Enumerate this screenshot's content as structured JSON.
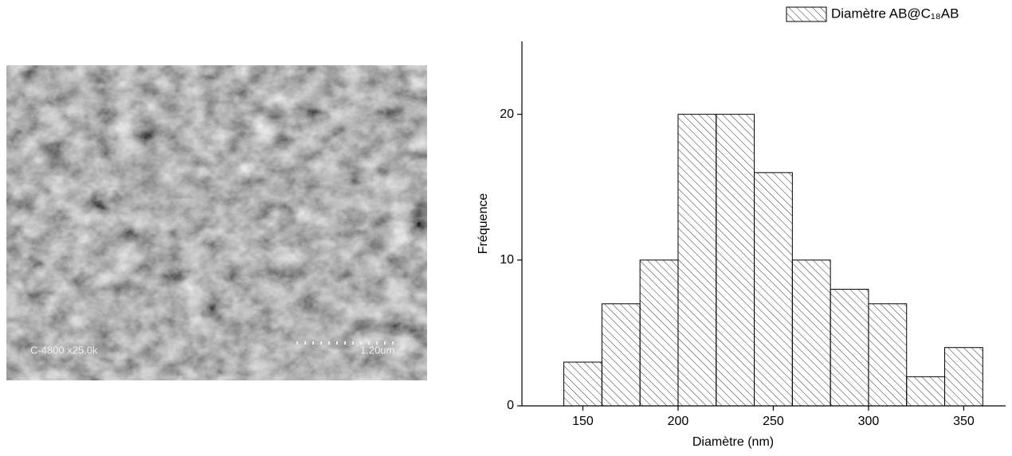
{
  "sem_image": {
    "caption": "C-4800 x25.0k",
    "scale_bar": "1.20um"
  },
  "chart_data": {
    "type": "histogram",
    "xlabel": "Diamètre (nm)",
    "ylabel": "Fréquence",
    "bins": [
      140,
      160,
      180,
      200,
      220,
      240,
      260,
      280,
      300,
      320,
      340,
      360
    ],
    "series": [
      {
        "name": "Diamètre AB@C₁₈AB",
        "color": "#000000",
        "values": [
          3,
          7,
          10,
          20,
          20,
          16,
          10,
          8,
          7,
          2,
          4
        ]
      }
    ],
    "xlim": [
      118,
      372
    ],
    "xticks": [
      150,
      200,
      250,
      300,
      350
    ],
    "ylim": [
      0,
      25
    ],
    "yticks": [
      0,
      10,
      20
    ],
    "legend": "top-right",
    "hatch": "diagonal"
  }
}
